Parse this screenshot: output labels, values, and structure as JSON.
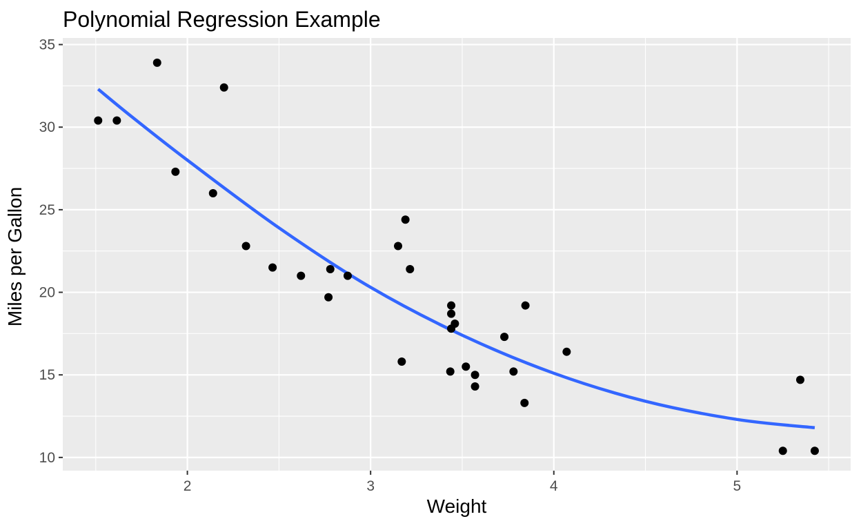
{
  "chart_data": {
    "type": "scatter",
    "title": "Polynomial Regression Example",
    "xlabel": "Weight",
    "ylabel": "Miles per Gallon",
    "xlim": [
      1.32,
      5.62
    ],
    "ylim": [
      9.2,
      35.4
    ],
    "x_ticks": [
      2,
      3,
      4,
      5
    ],
    "y_ticks": [
      10,
      15,
      20,
      25,
      30,
      35
    ],
    "grid": true,
    "legend": "none",
    "colors": {
      "panel_background": "#ebebeb",
      "grid": "#ffffff",
      "points": "#000000",
      "fit_line": "#3366ff",
      "tick_text": "#4d4d4d"
    },
    "series": [
      {
        "kind": "points",
        "x": [
          1.513,
          1.615,
          1.835,
          1.935,
          2.14,
          2.2,
          2.32,
          2.465,
          2.62,
          2.77,
          2.78,
          2.875,
          3.15,
          3.17,
          3.19,
          3.215,
          3.435,
          3.44,
          3.44,
          3.44,
          3.46,
          3.52,
          3.57,
          3.57,
          3.73,
          3.78,
          3.84,
          3.845,
          4.07,
          5.25,
          5.345,
          5.424
        ],
        "y": [
          30.4,
          30.4,
          33.9,
          27.3,
          26.0,
          32.4,
          22.8,
          21.5,
          21.0,
          19.7,
          21.4,
          21.0,
          22.8,
          15.8,
          24.4,
          21.4,
          15.2,
          17.8,
          18.7,
          19.2,
          18.1,
          15.5,
          15.0,
          14.3,
          17.3,
          15.2,
          13.3,
          19.2,
          16.4,
          10.4,
          14.7,
          10.4
        ]
      },
      {
        "kind": "fit",
        "x": [
          1.513,
          1.7,
          2.0,
          2.5,
          3.0,
          3.5,
          4.0,
          4.5,
          5.0,
          5.424
        ],
        "y": [
          32.3,
          30.6,
          28.0,
          23.9,
          20.3,
          17.4,
          15.1,
          13.4,
          12.3,
          11.8
        ]
      }
    ]
  }
}
